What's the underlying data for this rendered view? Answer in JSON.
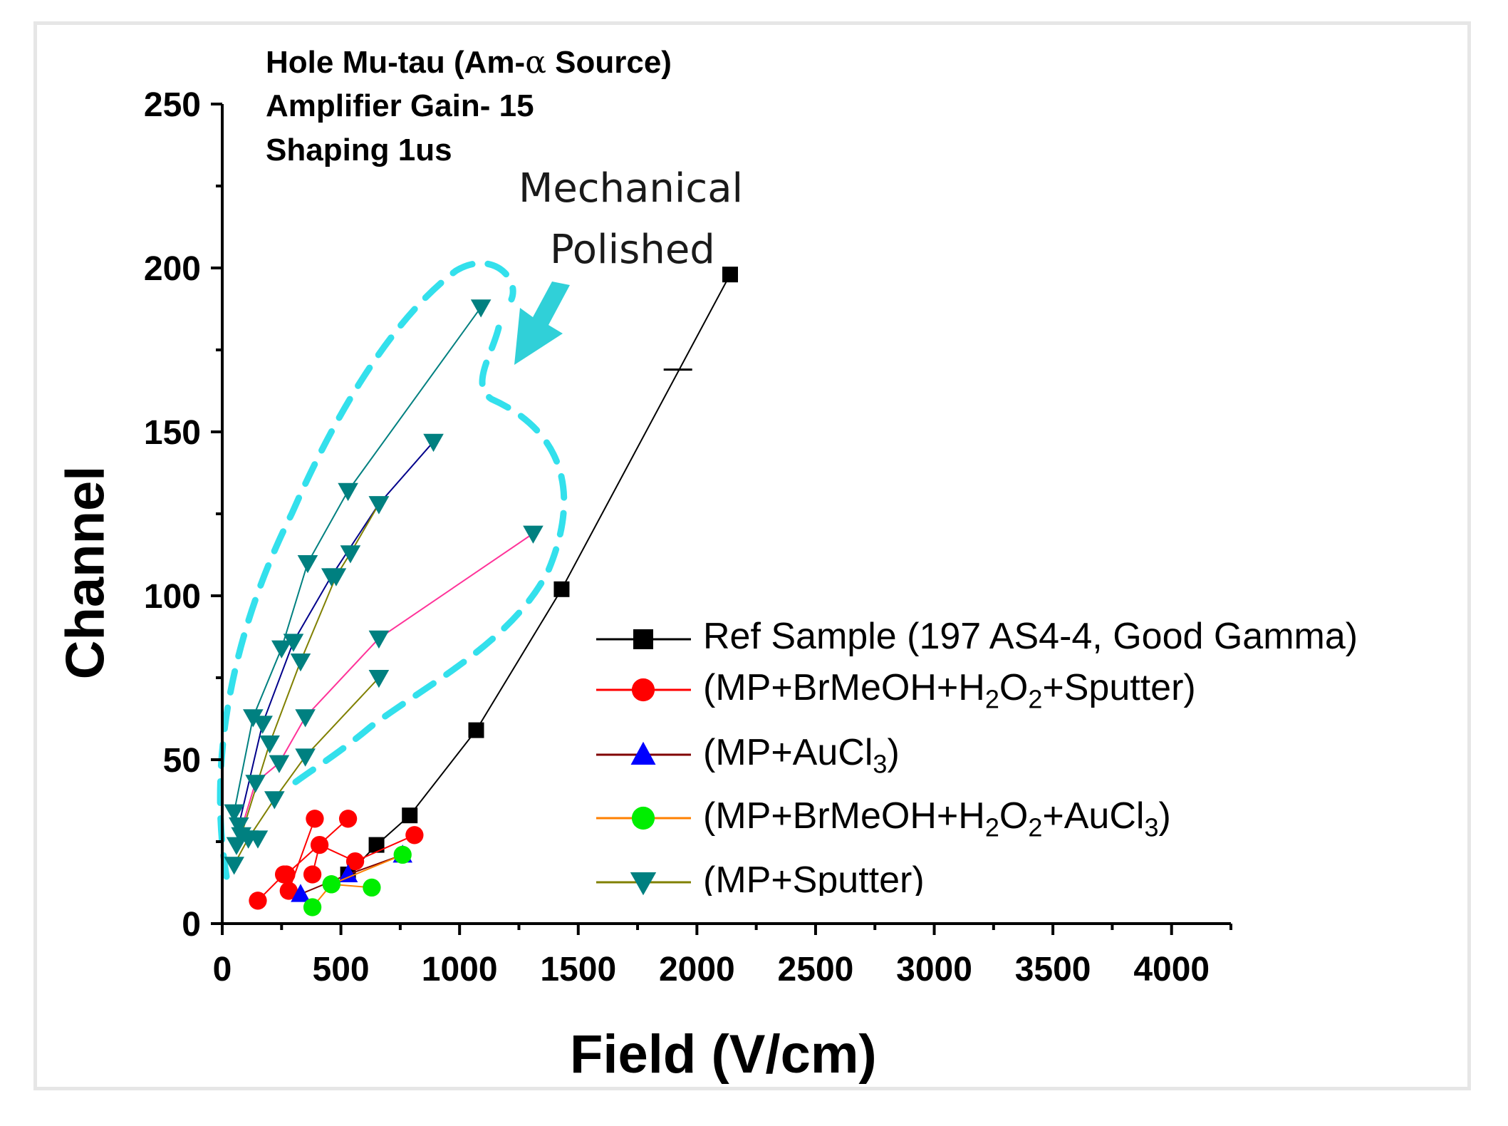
{
  "chart_data": {
    "type": "line",
    "xlabel": "Field (V/cm)",
    "ylabel": "Channel",
    "xlim": [
      0,
      4250
    ],
    "ylim": [
      0,
      250
    ],
    "x_ticks": [
      "0",
      "500",
      "1000",
      "1500",
      "2000",
      "2500",
      "3000",
      "3500",
      "4000"
    ],
    "y_ticks": [
      "0",
      "50",
      "100",
      "150",
      "200",
      "250"
    ],
    "annotation": {
      "line1": "Hole Mu-tau (Am-",
      "alpha": "α",
      "line1_end": " Source)",
      "line2": "Amplifier Gain- 15",
      "line3": "Shaping 1us"
    },
    "callout": {
      "line1": "Mechanical",
      "line2": "Polished"
    },
    "legend": [
      {
        "pre": "Ref Sample (197 AS4-4, Good Gamma)"
      },
      {
        "pre": "(MP+BrMeOH+H",
        "s1": "2",
        "mid": "O",
        "s2": "2",
        "post": "+Sputter)"
      },
      {
        "pre": "(MP+AuCl",
        "s1": "3",
        "post": ")"
      },
      {
        "pre": "(MP+BrMeOH+H",
        "s1": "2",
        "mid": "O",
        "s2": "2",
        "post": "+AuCl",
        "s3": "3",
        "post2": ")"
      },
      {
        "pre": "(MP+Sputter)"
      }
    ],
    "colors": {
      "ref_line": "#000000",
      "red_line": "#ff0000",
      "red_marker": "#ff0000",
      "blue_line": "#800000",
      "blue_marker": "#0000ff",
      "green_line": "#ff8000",
      "green_marker": "#00ee00",
      "teal_line": "#808000",
      "teal_marker": "#008080",
      "dash_outline": "#33e0ec",
      "arrow": "#30d0d8"
    },
    "series": [
      {
        "name": "Ref Sample (197 AS4-4, Good Gamma)",
        "marker": "square",
        "color": "#000000",
        "line_color": "#000000",
        "x": [
          530,
          650,
          790,
          1070,
          1430,
          2140
        ],
        "y": [
          15,
          24,
          33,
          59,
          102,
          198
        ]
      },
      {
        "name": "(MP+BrMeOH+H2O2+Sputter)",
        "marker": "circle",
        "color": "#ff0000",
        "line_color": "#ff0000",
        "lines": [
          {
            "x": [
              150,
              260,
              280,
              390
            ],
            "y": [
              7,
              15,
              10,
              32
            ]
          },
          {
            "x": [
              380,
              410,
              560,
              810
            ],
            "y": [
              15,
              24,
              19,
              27
            ]
          },
          {
            "x": [
              270,
              530
            ],
            "y": [
              15,
              32
            ]
          }
        ]
      },
      {
        "name": "(MP+AuCl3)",
        "marker": "triangle-up",
        "color": "#0000ff",
        "line_color": "#800000",
        "lines": [
          {
            "x": [
              330,
              530,
              760
            ],
            "y": [
              9,
              15,
              21
            ]
          }
        ]
      },
      {
        "name": "(MP+BrMeOH+H2O2+AuCl3)",
        "marker": "circle",
        "color": "#00ee00",
        "line_color": "#ff8000",
        "lines": [
          {
            "x": [
              380,
              460,
              630
            ],
            "y": [
              5,
              12,
              11
            ]
          },
          {
            "x": [
              460,
              760
            ],
            "y": [
              12,
              21
            ]
          }
        ]
      },
      {
        "name": "(MP+Sputter)",
        "marker": "triangle-down",
        "color": "#008080",
        "line_color": "#008080",
        "lines": [
          {
            "x": [
              50,
              130,
              250,
              360,
              530,
              1090
            ],
            "y": [
              34,
              63,
              84,
              110,
              132,
              188
            ],
            "line_color": "#008080"
          },
          {
            "x": [
              70,
              170,
              300,
              460,
              660,
              890
            ],
            "y": [
              30,
              61,
              86,
              106,
              128,
              147
            ],
            "line_color": "#00008b"
          },
          {
            "x": [
              80,
              200,
              330,
              480,
              540,
              660
            ],
            "y": [
              27,
              55,
              80,
              106,
              113,
              128
            ],
            "line_color": "#808000"
          },
          {
            "x": [
              60,
              140,
              240,
              350,
              660,
              1310
            ],
            "y": [
              24,
              43,
              49,
              63,
              87,
              119
            ],
            "line_color": "#ff3399"
          },
          {
            "x": [
              50,
              110,
              220,
              350,
              660
            ],
            "y": [
              18,
              26,
              38,
              51,
              75
            ],
            "line_color": "#808000"
          },
          {
            "x": [
              110,
              150
            ],
            "y": [
              26,
              26
            ],
            "line_color": "#008080"
          }
        ]
      }
    ],
    "error_bar": {
      "x": 1920,
      "y": 169
    }
  }
}
